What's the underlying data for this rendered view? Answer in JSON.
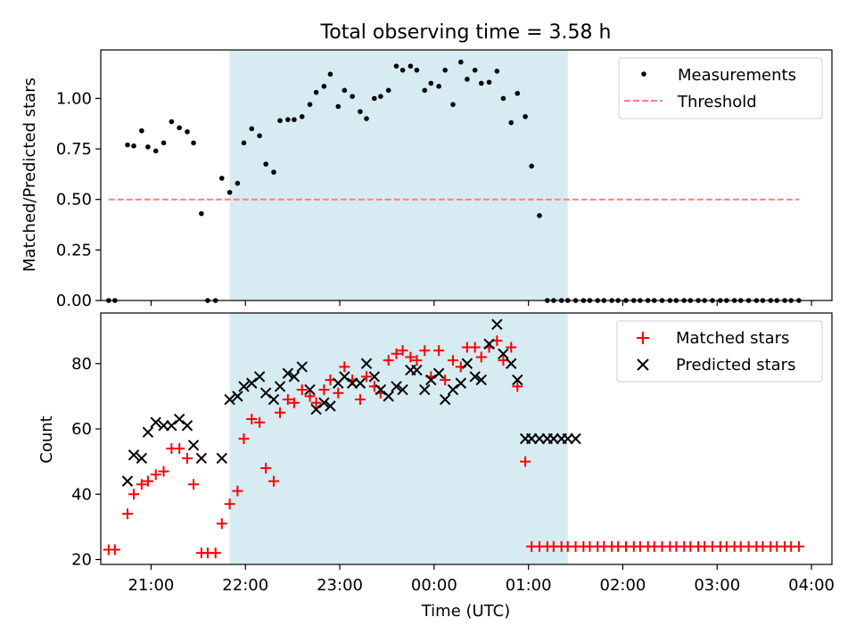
{
  "title": "Total observing time = 3.58 h",
  "colors": {
    "shade": "#add8e6",
    "threshold": "#ff7f7f",
    "matched": "#ff0000",
    "predicted": "#000000",
    "points": "#000000"
  },
  "chart_data": [
    {
      "type": "scatter",
      "title": "Total observing time = 3.58 h",
      "xlabel": "",
      "ylabel": "Matched/Predicted stars",
      "xlim": [
        "20:28",
        "04:13"
      ],
      "ylim": [
        0,
        1.24
      ],
      "xticks": [
        "21:00",
        "22:00",
        "23:00",
        "00:00",
        "01:00",
        "02:00",
        "03:00",
        "04:00"
      ],
      "yticks": [
        "0.00",
        "0.25",
        "0.50",
        "0.75",
        "1.00"
      ],
      "shaded_interval": [
        "21:50",
        "01:25"
      ],
      "legend": "upper right",
      "grid": false,
      "series": [
        {
          "name": "Measurements",
          "marker": "dot",
          "color": "#000000",
          "x": [
            "20:33",
            "20:37",
            "20:45",
            "20:49",
            "20:54",
            "20:58",
            "21:03",
            "21:08",
            "21:13",
            "21:18",
            "21:23",
            "21:27",
            "21:32",
            "21:36",
            "21:41",
            "21:45",
            "21:50",
            "21:55",
            "21:59",
            "22:04",
            "22:09",
            "22:13",
            "22:18",
            "22:22",
            "22:27",
            "22:31",
            "22:36",
            "22:41",
            "22:45",
            "22:50",
            "22:54",
            "22:59",
            "23:03",
            "23:08",
            "23:13",
            "23:17",
            "23:22",
            "23:26",
            "23:31",
            "23:36",
            "23:40",
            "23:45",
            "23:49",
            "23:54",
            "23:58",
            "00:03",
            "00:07",
            "00:12",
            "00:17",
            "00:21",
            "00:26",
            "00:30",
            "00:35",
            "00:40",
            "00:44",
            "00:49",
            "00:53",
            "00:58",
            "01:02",
            "01:07",
            "01:12",
            "01:16",
            "01:21",
            "01:25",
            "01:30",
            "01:35",
            "01:39",
            "01:44",
            "01:48",
            "01:53",
            "01:57",
            "02:02",
            "02:07",
            "02:11",
            "02:16",
            "02:20",
            "02:25",
            "02:30",
            "02:34",
            "02:39",
            "02:43",
            "02:48",
            "02:52",
            "02:57",
            "03:02",
            "03:06",
            "03:11",
            "03:15",
            "03:20",
            "03:25",
            "03:29",
            "03:34",
            "03:38",
            "03:43",
            "03:47",
            "03:52"
          ],
          "y": [
            0,
            0,
            0.77,
            0.765,
            0.84,
            0.76,
            0.74,
            0.78,
            0.885,
            0.855,
            0.835,
            0.78,
            0.43,
            0,
            0,
            0.605,
            0.535,
            0.58,
            0.78,
            0.85,
            0.815,
            0.675,
            0.635,
            0.89,
            0.895,
            0.895,
            0.91,
            0.97,
            1.03,
            1.06,
            1.12,
            0.96,
            1.04,
            1.01,
            0.935,
            0.9,
            1.0,
            1.01,
            1.04,
            1.16,
            1.14,
            1.16,
            1.14,
            1.04,
            1.075,
            1.06,
            1.14,
            0.97,
            1.18,
            1.095,
            1.14,
            1.075,
            1.08,
            1.135,
            1.0,
            0.88,
            1.025,
            0.91,
            0.665,
            0.42,
            0,
            0,
            0,
            0,
            0,
            0,
            0,
            0,
            0,
            0,
            0,
            0,
            0,
            0,
            0,
            0,
            0,
            0,
            0,
            0,
            0,
            0,
            0,
            0,
            0,
            0,
            0,
            0,
            0,
            0,
            0,
            0,
            0,
            0,
            0,
            0
          ]
        },
        {
          "name": "Threshold",
          "style": "dashed",
          "color": "#ff7f7f",
          "x": [
            "20:33",
            "03:52"
          ],
          "y": [
            0.5,
            0.5
          ]
        }
      ]
    },
    {
      "type": "scatter",
      "xlabel": "Time (UTC)",
      "ylabel": "Count",
      "xlim": [
        "20:28",
        "04:13"
      ],
      "ylim": [
        18.5,
        95.5
      ],
      "xticks": [
        "21:00",
        "22:00",
        "23:00",
        "00:00",
        "01:00",
        "02:00",
        "03:00",
        "04:00"
      ],
      "yticks": [
        "20",
        "40",
        "60",
        "80"
      ],
      "shaded_interval": [
        "21:50",
        "01:25"
      ],
      "legend": "upper right",
      "grid": false,
      "series": [
        {
          "name": "Matched stars",
          "marker": "plus",
          "color": "#ff0000",
          "x": [
            "20:33",
            "20:37",
            "20:45",
            "20:49",
            "20:54",
            "20:58",
            "21:03",
            "21:08",
            "21:13",
            "21:18",
            "21:23",
            "21:27",
            "21:32",
            "21:36",
            "21:41",
            "21:45",
            "21:50",
            "21:55",
            "21:59",
            "22:04",
            "22:09",
            "22:13",
            "22:18",
            "22:22",
            "22:27",
            "22:31",
            "22:36",
            "22:41",
            "22:45",
            "22:50",
            "22:54",
            "22:59",
            "23:03",
            "23:08",
            "23:13",
            "23:17",
            "23:22",
            "23:26",
            "23:31",
            "23:36",
            "23:40",
            "23:45",
            "23:49",
            "23:54",
            "23:58",
            "00:03",
            "00:07",
            "00:12",
            "00:17",
            "00:21",
            "00:26",
            "00:30",
            "00:35",
            "00:40",
            "00:44",
            "00:49",
            "00:53",
            "00:58",
            "01:02",
            "01:07",
            "01:12",
            "01:16",
            "01:21",
            "01:25",
            "01:30",
            "01:35",
            "01:39",
            "01:44",
            "01:48",
            "01:53",
            "01:57",
            "02:02",
            "02:07",
            "02:11",
            "02:16",
            "02:20",
            "02:25",
            "02:30",
            "02:34",
            "02:39",
            "02:43",
            "02:48",
            "02:52",
            "02:57",
            "03:02",
            "03:06",
            "03:11",
            "03:15",
            "03:20",
            "03:25",
            "03:29",
            "03:34",
            "03:38",
            "03:43",
            "03:47",
            "03:52"
          ],
          "y": [
            23,
            23,
            34,
            40,
            43,
            44,
            46,
            47,
            54,
            54,
            51,
            43,
            22,
            22,
            22,
            31,
            37,
            41,
            57,
            63,
            62,
            48,
            44,
            65,
            69,
            68,
            72,
            70,
            68,
            72,
            75,
            71,
            79,
            75,
            69,
            76,
            73,
            71,
            81,
            83,
            84,
            82,
            81,
            84,
            76,
            84,
            75,
            81,
            79,
            85,
            85,
            82,
            85,
            87,
            81,
            85,
            73,
            50,
            24,
            24,
            24,
            24,
            24,
            24,
            24,
            24,
            24,
            24,
            24,
            24,
            24,
            24,
            24,
            24,
            24,
            24,
            24,
            24,
            24,
            24,
            24,
            24,
            24,
            24,
            24,
            24,
            24,
            24,
            24,
            24,
            24,
            24,
            24,
            24,
            24,
            24
          ]
        },
        {
          "name": "Predicted stars",
          "marker": "x",
          "color": "#000000",
          "x": [
            "20:45",
            "20:49",
            "20:54",
            "20:58",
            "21:03",
            "21:08",
            "21:13",
            "21:18",
            "21:23",
            "21:27",
            "21:32",
            "21:45",
            "21:50",
            "21:55",
            "21:59",
            "22:04",
            "22:09",
            "22:13",
            "22:18",
            "22:22",
            "22:27",
            "22:31",
            "22:36",
            "22:41",
            "22:45",
            "22:50",
            "22:54",
            "22:59",
            "23:03",
            "23:08",
            "23:13",
            "23:17",
            "23:22",
            "23:26",
            "23:31",
            "23:36",
            "23:40",
            "23:45",
            "23:49",
            "23:54",
            "23:58",
            "00:03",
            "00:07",
            "00:12",
            "00:17",
            "00:21",
            "00:26",
            "00:30",
            "00:35",
            "00:40",
            "00:44",
            "00:49",
            "00:53",
            "00:58",
            "01:02",
            "01:07",
            "01:12",
            "01:16",
            "01:21",
            "01:25",
            "01:30"
          ],
          "y": [
            44,
            52,
            51,
            59,
            62,
            61,
            61,
            63,
            61,
            55,
            51,
            51,
            69,
            70,
            73,
            74,
            76,
            71,
            69,
            73,
            77,
            76,
            79,
            72,
            66,
            68,
            67,
            74,
            76,
            74,
            74,
            80,
            76,
            72,
            70,
            73,
            72,
            78,
            78,
            72,
            75,
            77,
            69,
            72,
            74,
            80,
            76,
            75,
            86,
            92,
            83,
            80,
            75,
            57,
            57,
            57,
            57,
            57,
            57,
            57,
            57
          ]
        }
      ]
    }
  ]
}
